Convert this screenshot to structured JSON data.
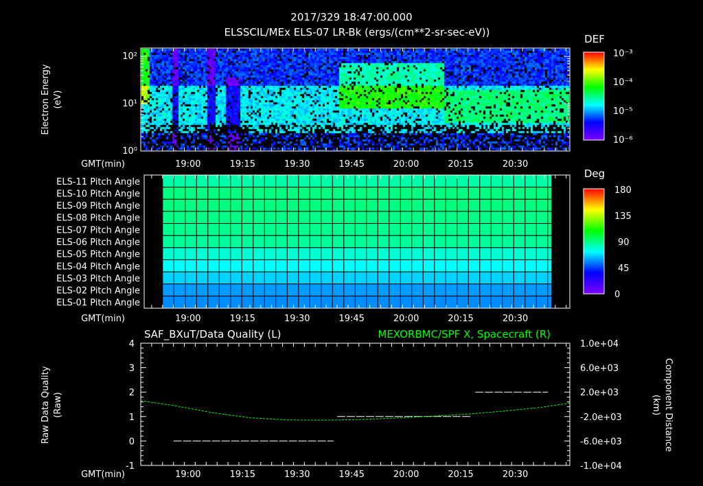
{
  "header": {
    "title_line1": "2017/329 18:47:00.000",
    "title_line2": "ELSSCIL/MEx ELS-07 LR-Bk  (ergs/(cm**2-sr-sec-eV))"
  },
  "chart_data": [
    {
      "type": "heatmap",
      "name": "electron-energy-spectrogram",
      "ylabel": "Electron Energy",
      "yunits": "(eV)",
      "yscale": "log",
      "ylim": [
        1,
        150
      ],
      "yticks": [
        "10⁰",
        "10¹",
        "10²"
      ],
      "xlabel": "GMT(min)",
      "xlim": [
        "18:47",
        "20:45"
      ],
      "xticks": [
        "19:00",
        "19:15",
        "19:30",
        "19:45",
        "20:00",
        "20:15",
        "20:30"
      ],
      "colorbar": {
        "label": "DEF",
        "ticks": [
          "10⁻³",
          "10⁻⁴",
          "10⁻⁵",
          "10⁻⁶"
        ],
        "range": [
          1e-06,
          0.001
        ]
      },
      "features": [
        {
          "time_range": [
            "18:47",
            "18:49"
          ],
          "energy_range_eV": [
            10,
            150
          ],
          "level": "high"
        },
        {
          "time_range": [
            "19:41",
            "20:10"
          ],
          "energy_range_eV": [
            8,
            80
          ],
          "level": "elevated"
        },
        {
          "time_range": [
            "20:10",
            "20:45"
          ],
          "energy_range_eV": [
            4,
            20
          ],
          "level": "moderate"
        }
      ]
    },
    {
      "type": "heatmap",
      "name": "pitch-angle",
      "rows": [
        "ELS-11 Pitch Angle",
        "ELS-10 Pitch Angle",
        "ELS-09 Pitch Angle",
        "ELS-08 Pitch Angle",
        "ELS-07 Pitch Angle",
        "ELS-06 Pitch Angle",
        "ELS-05 Pitch Angle",
        "ELS-04 Pitch Angle",
        "ELS-03 Pitch Angle",
        "ELS-02 Pitch Angle",
        "ELS-01 Pitch Angle"
      ],
      "values_deg": [
        84,
        90,
        90,
        89,
        88,
        86,
        78,
        72,
        66,
        58,
        56
      ],
      "data_time_range": [
        "18:53",
        "20:40"
      ],
      "xlabel": "GMT(min)",
      "xticks": [
        "19:00",
        "19:15",
        "19:30",
        "19:45",
        "20:00",
        "20:15",
        "20:30"
      ],
      "colorbar": {
        "label": "Deg",
        "ticks": [
          "180",
          "135",
          "90",
          "45",
          "0"
        ],
        "range": [
          0,
          180
        ]
      }
    },
    {
      "type": "line",
      "title_left": "SAF_BXuT/Data Quality (L)",
      "title_right": "MEXORBMC/SPF X, Spacecraft (R)",
      "ylabel_left": "Raw Data Quality",
      "ylabel_left_units": "(Raw)",
      "ylabel_right": "Component Distance",
      "ylabel_right_units": "(km)",
      "ylim_left": [
        -1,
        4
      ],
      "ylim_right": [
        -10000,
        10000
      ],
      "yticks_left": [
        "4",
        "3",
        "2",
        "1",
        "0",
        "-1"
      ],
      "yticks_right": [
        "1.0e+04",
        "6.0e+03",
        "2.0e+03",
        "-2.0e+03",
        "-6.0e+03",
        "-1.0e+04"
      ],
      "xlabel": "GMT(min)",
      "xticks": [
        "19:00",
        "19:15",
        "19:30",
        "19:45",
        "20:00",
        "20:15",
        "20:30"
      ],
      "series": [
        {
          "name": "Data Quality",
          "axis": "left",
          "color": "#ffffff",
          "segments": [
            {
              "x": [
                "18:56",
                "19:40"
              ],
              "y": 0
            },
            {
              "x": [
                "19:41",
                "20:18"
              ],
              "y": 1
            },
            {
              "x": [
                "20:19",
                "20:39"
              ],
              "y": 2
            }
          ]
        },
        {
          "name": "SPF X",
          "axis": "right",
          "color": "#00ff00",
          "x_min": [
            0,
            10,
            20,
            30,
            40,
            50,
            60,
            70,
            80,
            90,
            100,
            110,
            118
          ],
          "y": [
            600,
            -300,
            -1400,
            -2200,
            -2550,
            -2600,
            -2500,
            -2250,
            -1950,
            -1600,
            -1100,
            -500,
            200
          ]
        }
      ]
    }
  ],
  "axis_labels": {
    "gmt": "GMT(min)"
  }
}
